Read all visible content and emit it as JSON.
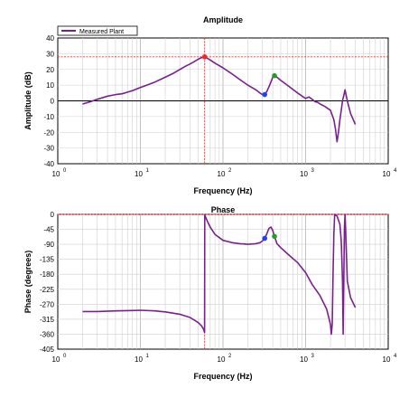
{
  "colors": {
    "trace": "#7a1f8f",
    "cursor": "#ff2a2a",
    "marker_red": "#ff2020",
    "marker_blue": "#2040ff",
    "marker_green": "#20a020",
    "grid": "#cfcfcf",
    "zero_line": "#000000"
  },
  "chart_data": [
    {
      "id": "amplitude",
      "type": "line",
      "title": "Amplitude",
      "xlabel": "Frequency (Hz)",
      "ylabel": "Amplitude (dB)",
      "xscale": "log",
      "xlim": [
        1,
        10000
      ],
      "ylim": [
        -40,
        40
      ],
      "yticks": [
        -40,
        -30,
        -20,
        -10,
        0,
        10,
        20,
        30,
        40
      ],
      "xticks": [
        {
          "base": "10",
          "exp": "0"
        },
        {
          "base": "10",
          "exp": "1"
        },
        {
          "base": "10",
          "exp": "2"
        },
        {
          "base": "10",
          "exp": "3"
        },
        {
          "base": "10",
          "exp": "4"
        }
      ],
      "grid": true,
      "legend": {
        "position": "top-left",
        "entries": [
          "Measured Plant"
        ]
      },
      "cursor": {
        "x": 60,
        "y": 28
      },
      "markers": [
        {
          "x": 60,
          "y": 28,
          "color": "red"
        },
        {
          "x": 320,
          "y": 4,
          "color": "blue"
        },
        {
          "x": 420,
          "y": 16,
          "color": "green"
        }
      ],
      "series": [
        {
          "name": "Measured Plant",
          "x": [
            2,
            2.5,
            3,
            4,
            5,
            6,
            7,
            8,
            10,
            12,
            15,
            20,
            25,
            30,
            35,
            40,
            45,
            50,
            55,
            60,
            65,
            70,
            80,
            100,
            130,
            160,
            200,
            250,
            280,
            300,
            320,
            340,
            360,
            380,
            400,
            420,
            450,
            500,
            600,
            800,
            1000,
            1100,
            1200,
            1300,
            1400,
            1500,
            1700,
            2000,
            2200,
            2300,
            2400,
            2500,
            2600,
            2700,
            2800,
            3000,
            3200,
            3500,
            4000
          ],
          "y": [
            -2,
            -0.5,
            1,
            3,
            4,
            4.5,
            5.5,
            6.5,
            8.5,
            10,
            12,
            15,
            17.5,
            20,
            22,
            23.5,
            25,
            26.5,
            27.5,
            28,
            27,
            26,
            24,
            21,
            17,
            13.5,
            10,
            7,
            5,
            4,
            4,
            6,
            9,
            12,
            15,
            16,
            15,
            13,
            10,
            5,
            1.5,
            2.5,
            1,
            -0.5,
            -1,
            -2,
            -3.5,
            -6,
            -12,
            -18,
            -26,
            -20,
            -12,
            -6,
            0,
            7,
            0,
            -8,
            -15
          ]
        }
      ]
    },
    {
      "id": "phase",
      "type": "line",
      "title": "Phase",
      "xlabel": "Frequency (Hz)",
      "ylabel": "Phase (degrees)",
      "xscale": "log",
      "xlim": [
        1,
        10000
      ],
      "ylim": [
        -405,
        0
      ],
      "yticks": [
        0,
        -45,
        -90,
        -135,
        -180,
        -225,
        -270,
        -315,
        -360,
        -405
      ],
      "xticks": [
        {
          "base": "10",
          "exp": "0"
        },
        {
          "base": "10",
          "exp": "1"
        },
        {
          "base": "10",
          "exp": "2"
        },
        {
          "base": "10",
          "exp": "3"
        },
        {
          "base": "10",
          "exp": "4"
        }
      ],
      "grid": true,
      "cursor": {
        "x": 60,
        "y": 0
      },
      "markers": [
        {
          "x": 320,
          "y": -72,
          "color": "blue"
        },
        {
          "x": 420,
          "y": -66,
          "color": "green"
        }
      ],
      "series": [
        {
          "name": "Measured Plant",
          "x": [
            2,
            3,
            5,
            8,
            10,
            15,
            20,
            30,
            40,
            50,
            55,
            58,
            59.9,
            60.1,
            62,
            65,
            70,
            80,
            100,
            130,
            160,
            200,
            250,
            280,
            300,
            320,
            340,
            360,
            380,
            400,
            420,
            450,
            500,
            600,
            800,
            1000,
            1200,
            1500,
            1800,
            2000,
            2050,
            2100,
            2150,
            2200,
            2250,
            2400,
            2600,
            2700,
            2800,
            2850,
            2900,
            2950,
            3000,
            3050,
            3200,
            3500,
            4000
          ],
          "y": [
            -292,
            -292,
            -290,
            -289,
            -288,
            -290,
            -293,
            -300,
            -310,
            -325,
            -335,
            -345,
            -355,
            -2,
            -10,
            -22,
            -38,
            -60,
            -78,
            -85,
            -88,
            -90,
            -88,
            -85,
            -80,
            -72,
            -58,
            -42,
            -38,
            -48,
            -66,
            -88,
            -100,
            -118,
            -145,
            -175,
            -210,
            -245,
            -285,
            -330,
            -360,
            -330,
            -180,
            -60,
            0,
            -5,
            -30,
            -80,
            -200,
            -360,
            -200,
            -40,
            0,
            -40,
            -200,
            -250,
            -280
          ]
        }
      ]
    }
  ]
}
